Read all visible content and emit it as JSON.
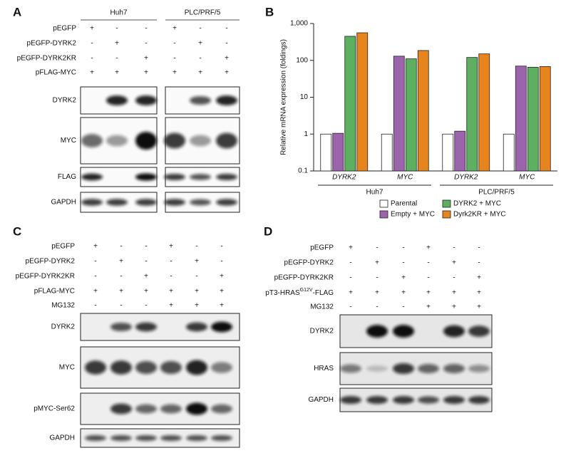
{
  "panel_a": {
    "label": "A",
    "cell_lines": [
      "Huh7",
      "PLC/PRF/5"
    ],
    "conditions": [
      {
        "name": "pEGFP",
        "signs": [
          "+",
          "-",
          "-",
          "+",
          "-",
          "-"
        ]
      },
      {
        "name": "pEGFP-DYRK2",
        "signs": [
          "-",
          "+",
          "-",
          "-",
          "+",
          "-"
        ]
      },
      {
        "name": "pEGFP-DYRK2KR",
        "signs": [
          "-",
          "-",
          "+",
          "-",
          "-",
          "+"
        ]
      },
      {
        "name": "pFLAG-MYC",
        "signs": [
          "+",
          "+",
          "+",
          "+",
          "+",
          "+"
        ]
      }
    ],
    "blots": [
      "DYRK2",
      "MYC",
      "FLAG",
      "GAPDH"
    ]
  },
  "chart_data": {
    "type": "bar",
    "panel_label": "B",
    "ylabel": "Relative mRNA expression (foldings)",
    "log_scale": true,
    "ylim": [
      0.1,
      1000
    ],
    "yticks": [
      0.1,
      1,
      10,
      100,
      {
        "value": 1000,
        "label": "1,000"
      }
    ],
    "categories": [
      "DYRK2",
      "MYC",
      "DYRK2",
      "MYC"
    ],
    "groups": [
      "Huh7",
      "PLC/PRF/5"
    ],
    "series": [
      {
        "name": "Parental",
        "color": "#ffffff",
        "values": [
          1,
          1,
          1,
          1
        ]
      },
      {
        "name": "Empty + MYC",
        "color": "#9b64ad",
        "values": [
          1.05,
          130,
          1.2,
          70
        ]
      },
      {
        "name": "DYRK2 + MYC",
        "color": "#5cb060",
        "values": [
          450,
          110,
          120,
          65
        ]
      },
      {
        "name": "Dyrk2KR + MYC",
        "color": "#e8841e",
        "values": [
          560,
          185,
          150,
          68
        ]
      }
    ]
  },
  "panel_c": {
    "label": "C",
    "conditions": [
      {
        "name": "pEGFP",
        "signs": [
          "+",
          "-",
          "-",
          "+",
          "-",
          "-"
        ]
      },
      {
        "name": "pEGFP-DYRK2",
        "signs": [
          "-",
          "+",
          "-",
          "-",
          "+",
          "-"
        ]
      },
      {
        "name": "pEGFP-DYRK2KR",
        "signs": [
          "-",
          "-",
          "+",
          "-",
          "-",
          "+"
        ]
      },
      {
        "name": "pFLAG-MYC",
        "signs": [
          "+",
          "+",
          "+",
          "+",
          "+",
          "+"
        ]
      },
      {
        "name": "MG132",
        "signs": [
          "-",
          "-",
          "-",
          "+",
          "+",
          "+"
        ]
      }
    ],
    "blots": [
      "DYRK2",
      "MYC",
      "pMYC-Ser62",
      "GAPDH"
    ]
  },
  "panel_d": {
    "label": "D",
    "conditions": [
      {
        "name": "pEGFP",
        "signs": [
          "+",
          "-",
          "-",
          "+",
          "-",
          "-"
        ]
      },
      {
        "name": "pEGFP-DYRK2",
        "signs": [
          "-",
          "+",
          "-",
          "-",
          "+",
          "-"
        ]
      },
      {
        "name": "pEGFP-DYRK2KR",
        "signs": [
          "-",
          "-",
          "+",
          "-",
          "-",
          "+"
        ]
      },
      {
        "name": {
          "text": "pT3-HRAS",
          "sup": "G12V",
          "suffix": "-FLAG"
        },
        "signs": [
          "+",
          "+",
          "+",
          "+",
          "+",
          "+"
        ]
      },
      {
        "name": "MG132",
        "signs": [
          "-",
          "-",
          "-",
          "+",
          "+",
          "+"
        ]
      }
    ],
    "blots": [
      "DYRK2",
      "HRAS",
      "GAPDH"
    ]
  }
}
